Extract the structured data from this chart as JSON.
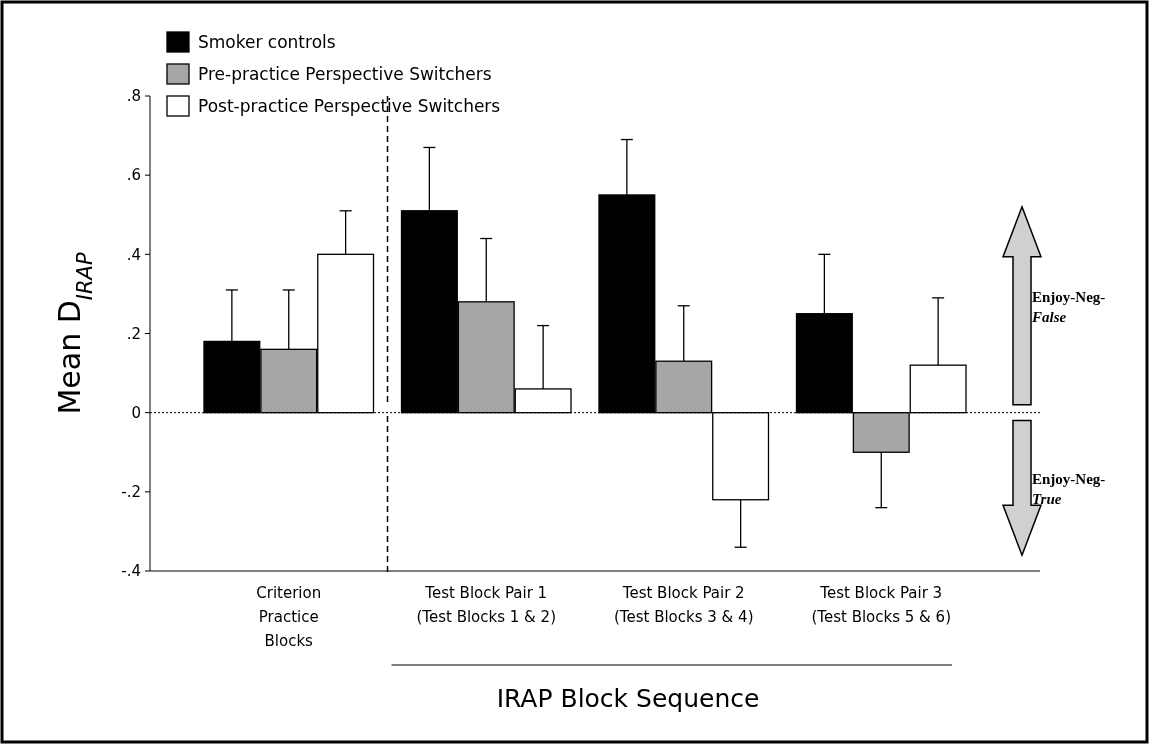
{
  "chart_data": {
    "type": "bar",
    "xlabel": "IRAP Block Sequence",
    "ylabel": "Mean D$_{IRAP}$",
    "categories": [
      "Criterion\nPractice\nBlocks",
      "Test Block Pair 1\n(Test Blocks 1 & 2)",
      "Test Block Pair 2\n(Test Blocks 3 & 4)",
      "Test Block Pair 3\n(Test Blocks 5 & 6)"
    ],
    "series": [
      {
        "name": "Smoker controls",
        "color": "#000000",
        "values": [
          0.18,
          0.51,
          0.55,
          0.25
        ],
        "errors": [
          [
            0.18,
            0.31
          ],
          [
            0.51,
            0.67
          ],
          [
            0.55,
            0.69
          ],
          [
            0.25,
            0.4
          ]
        ]
      },
      {
        "name": "Pre-practice Perspective Switchers",
        "color": "#a6a6a6",
        "values": [
          0.16,
          0.28,
          0.13,
          -0.1
        ],
        "errors": [
          [
            0.16,
            0.31
          ],
          [
            0.28,
            0.44
          ],
          [
            0.13,
            0.27
          ],
          [
            -0.24,
            -0.1
          ]
        ]
      },
      {
        "name": "Post-practice Perspective Switchers",
        "color": "#ffffff",
        "values": [
          0.4,
          0.06,
          -0.22,
          0.12
        ],
        "errors": [
          [
            0.4,
            0.51
          ],
          [
            0.06,
            0.22
          ],
          [
            -0.34,
            -0.22
          ],
          [
            0.12,
            0.29
          ]
        ]
      }
    ],
    "ylim": [
      -0.4,
      0.8
    ],
    "yticks": [
      {
        "value": -0.4,
        "label": "-.4"
      },
      {
        "value": -0.2,
        "label": "-.2"
      },
      0,
      {
        "value": 0.2,
        "label": ".2"
      },
      {
        "value": 0.4,
        "label": ".4"
      },
      {
        "value": 0.6,
        "label": ".6"
      },
      {
        "value": 0.8,
        "label": ".8"
      }
    ],
    "ref_lines": [
      {
        "axis": "y",
        "value": 0,
        "line_style": "dotted",
        "color": "#000000"
      }
    ],
    "annotations": [
      "Enjoy-Neg-False",
      "Enjoy-Neg-True"
    ],
    "legend": "top left",
    "grid": false
  }
}
